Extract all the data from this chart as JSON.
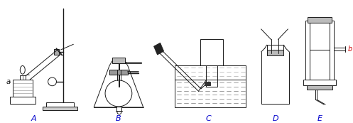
{
  "labels": [
    "A",
    "B",
    "C",
    "D",
    "E"
  ],
  "label_a": "a",
  "label_b": "b",
  "bg_color": "#ffffff",
  "line_color": "#1a1a1a",
  "fig_width": 4.97,
  "fig_height": 1.73,
  "dpi": 100,
  "label_color": "#0000cc"
}
